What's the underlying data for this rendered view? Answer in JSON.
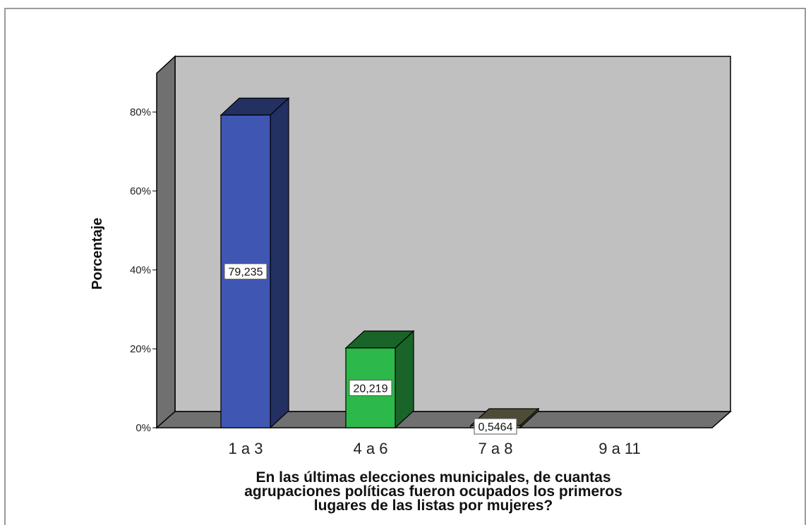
{
  "chart_data": {
    "type": "bar",
    "style": "3d",
    "categories": [
      "1 a 3",
      "4 a 6",
      "7 a 8",
      "9 a 11"
    ],
    "values": [
      79.235,
      20.219,
      0.5464,
      0
    ],
    "data_labels": [
      "79,235",
      "20,219",
      "0,5464",
      ""
    ],
    "bar_colors": [
      "#3F57B3",
      "#2DB84A",
      "#8E8A62",
      "#808080"
    ],
    "ylabel": "Porcentaje",
    "xlabel_lines": [
      "En las últimas elecciones municipales, de cuantas",
      "agrupaciones políticas fueron ocupados los primeros",
      "lugares de las listas por mujeres?"
    ],
    "yticks": [
      "0%",
      "20%",
      "40%",
      "60%",
      "80%"
    ],
    "ytick_values": [
      0,
      20,
      40,
      60,
      80
    ],
    "ylim": [
      0,
      100
    ],
    "grid": false,
    "legend": "none",
    "colors": {
      "plot_back": "#C0C0C0",
      "plot_side": "#707070",
      "plot_floor": "#707070",
      "outline": "#000000"
    }
  }
}
